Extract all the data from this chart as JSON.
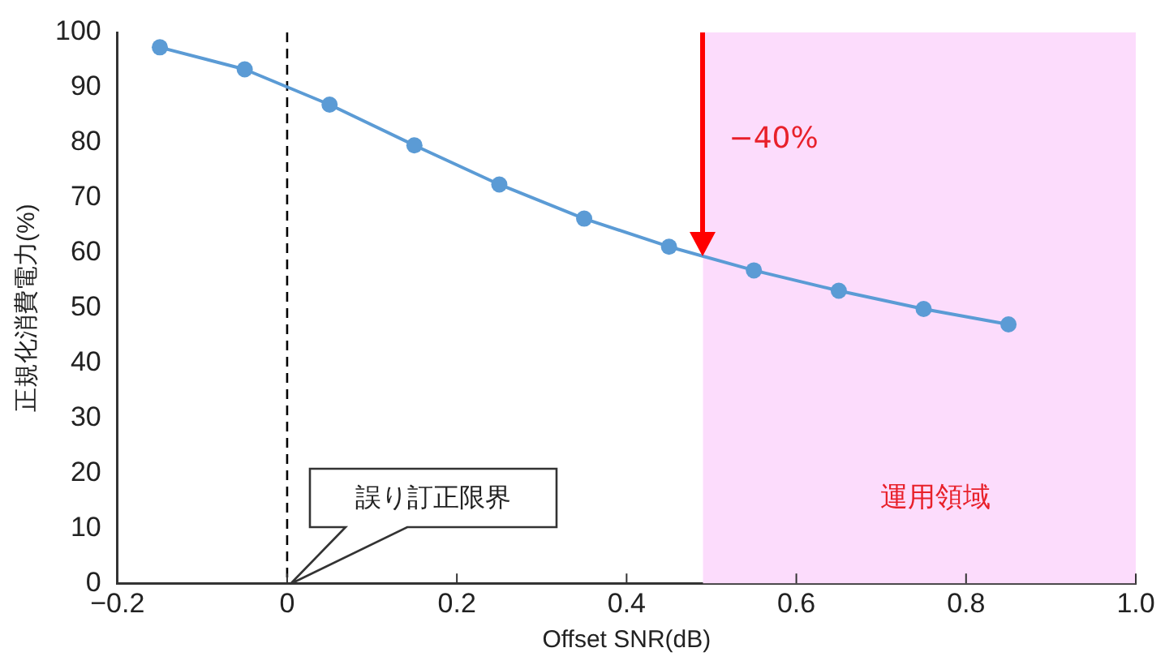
{
  "chart_data": {
    "type": "line",
    "xlabel": "Offset SNR(dB)",
    "ylabel": "正規化消費電力(%)",
    "x": [
      -0.15,
      -0.05,
      0.05,
      0.15,
      0.25,
      0.35,
      0.45,
      0.55,
      0.65,
      0.75,
      0.85
    ],
    "series": [
      {
        "color": "#5b9bd5",
        "values": [
          97.3,
          93.3,
          86.9,
          79.5,
          72.4,
          66.2,
          61.1,
          56.8,
          53.1,
          49.8,
          47.0
        ]
      }
    ],
    "xlim": [
      -0.2,
      1.0
    ],
    "xticks": [
      {
        "value": -0.2,
        "label": "−0.2"
      },
      0,
      0.2,
      0.4,
      0.6,
      0.8,
      {
        "value": 1,
        "label": "1.0"
      }
    ],
    "ylim": [
      0,
      100
    ],
    "yticks": [
      0,
      10,
      20,
      30,
      40,
      50,
      60,
      70,
      80,
      90,
      100
    ],
    "marker": "circle",
    "line_style": "solid",
    "grid": false,
    "legend": false,
    "ref_lines": [
      {
        "axis": "x",
        "value": 0,
        "color": "#000000",
        "line_style": "dashed"
      }
    ],
    "bands": [
      {
        "axis": "x",
        "from": 0.49,
        "to": 1.0,
        "label": "運用領域",
        "color": "#fcdcfc"
      }
    ],
    "annotations": [
      "誤り訂正限界",
      "−40%"
    ]
  }
}
